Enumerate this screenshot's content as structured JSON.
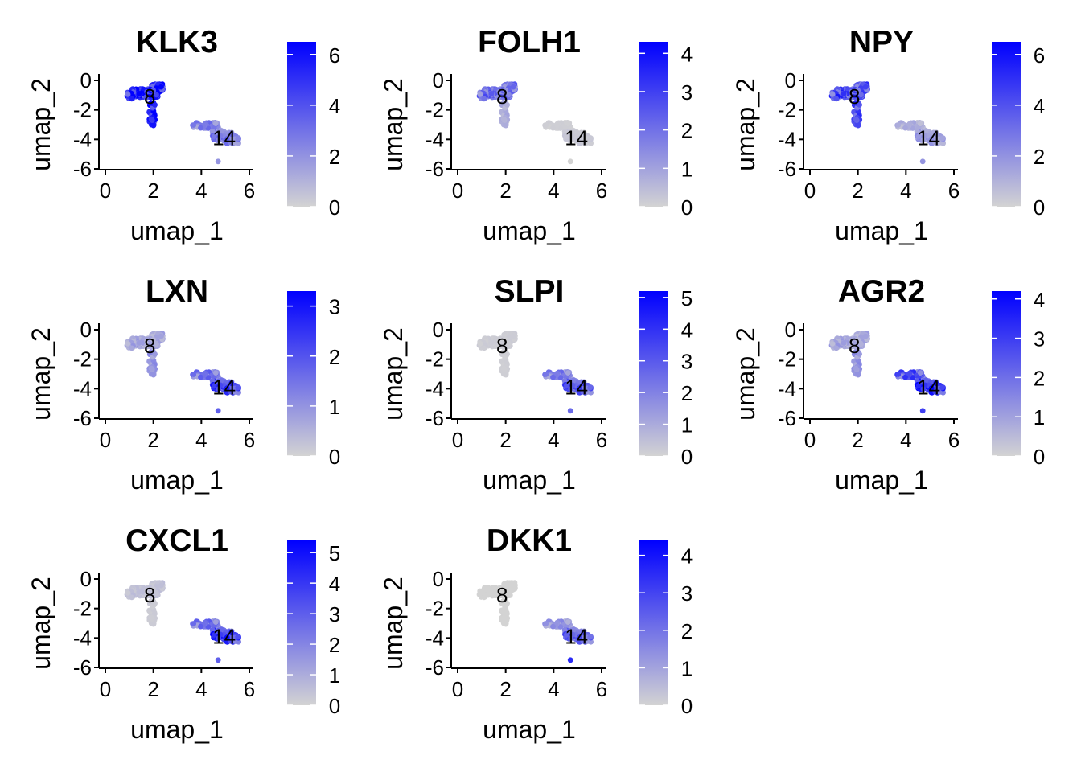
{
  "chart_data": [
    {
      "type": "scatter",
      "title": "KLK3",
      "xlabel": "umap_1",
      "ylabel": "umap_2",
      "xlim": [
        0,
        6
      ],
      "ylim": [
        -6,
        0
      ],
      "x_ticks": [
        0,
        2,
        4,
        6
      ],
      "y_ticks": [
        0,
        -2,
        -4,
        -6
      ],
      "colorbar": {
        "min": 0,
        "max": 6.5,
        "ticks": [
          0,
          2,
          4,
          6
        ]
      },
      "cluster_labels": [
        {
          "text": "8",
          "x": 1.85,
          "y": -1.1
        },
        {
          "text": "14",
          "x": 4.95,
          "y": -3.9
        }
      ],
      "expression": {
        "cluster_8": 0.85,
        "cluster_8_tail": 0.75,
        "cluster_14": 0.35,
        "cluster_14_east": 0.4,
        "outlier": 0.3
      }
    },
    {
      "type": "scatter",
      "title": "FOLH1",
      "xlabel": "umap_1",
      "ylabel": "umap_2",
      "xlim": [
        0,
        6
      ],
      "ylim": [
        -6,
        0
      ],
      "x_ticks": [
        0,
        2,
        4,
        6
      ],
      "y_ticks": [
        0,
        -2,
        -4,
        -6
      ],
      "colorbar": {
        "min": 0,
        "max": 4.3,
        "ticks": [
          0,
          1,
          2,
          3,
          4
        ]
      },
      "cluster_labels": [
        {
          "text": "8",
          "x": 1.85,
          "y": -1.1
        },
        {
          "text": "14",
          "x": 4.95,
          "y": -3.9
        }
      ],
      "expression": {
        "cluster_8": 0.45,
        "cluster_8_tail": 0.15,
        "cluster_14": 0.02,
        "cluster_14_east": 0.05,
        "outlier": 0.0
      }
    },
    {
      "type": "scatter",
      "title": "NPY",
      "xlabel": "umap_1",
      "ylabel": "umap_2",
      "xlim": [
        0,
        6
      ],
      "ylim": [
        -6,
        0
      ],
      "x_ticks": [
        0,
        2,
        4,
        6
      ],
      "y_ticks": [
        0,
        -2,
        -4,
        -6
      ],
      "colorbar": {
        "min": 0,
        "max": 6.5,
        "ticks": [
          0,
          2,
          4,
          6
        ]
      },
      "cluster_labels": [
        {
          "text": "8",
          "x": 1.85,
          "y": -1.1
        },
        {
          "text": "14",
          "x": 4.95,
          "y": -3.9
        }
      ],
      "expression": {
        "cluster_8": 0.6,
        "cluster_8_tail": 0.55,
        "cluster_14": 0.15,
        "cluster_14_east": 0.25,
        "outlier": 0.3
      }
    },
    {
      "type": "scatter",
      "title": "LXN",
      "xlabel": "umap_1",
      "ylabel": "umap_2",
      "xlim": [
        0,
        6
      ],
      "ylim": [
        -6,
        0
      ],
      "x_ticks": [
        0,
        2,
        4,
        6
      ],
      "y_ticks": [
        0,
        -2,
        -4,
        -6
      ],
      "colorbar": {
        "min": 0,
        "max": 3.3,
        "ticks": [
          0,
          1,
          2,
          3
        ]
      },
      "cluster_labels": [
        {
          "text": "8",
          "x": 1.85,
          "y": -1.1
        },
        {
          "text": "14",
          "x": 4.95,
          "y": -3.9
        }
      ],
      "expression": {
        "cluster_8": 0.2,
        "cluster_8_tail": 0.25,
        "cluster_14": 0.4,
        "cluster_14_east": 0.65,
        "outlier": 0.55
      }
    },
    {
      "type": "scatter",
      "title": "SLPI",
      "xlabel": "umap_1",
      "ylabel": "umap_2",
      "xlim": [
        0,
        6
      ],
      "ylim": [
        -6,
        0
      ],
      "x_ticks": [
        0,
        2,
        4,
        6
      ],
      "y_ticks": [
        0,
        -2,
        -4,
        -6
      ],
      "colorbar": {
        "min": 0,
        "max": 5.2,
        "ticks": [
          0,
          1,
          2,
          3,
          4,
          5
        ]
      },
      "cluster_labels": [
        {
          "text": "8",
          "x": 1.85,
          "y": -1.1
        },
        {
          "text": "14",
          "x": 4.95,
          "y": -3.9
        }
      ],
      "expression": {
        "cluster_8": 0.03,
        "cluster_8_tail": 0.02,
        "cluster_14": 0.35,
        "cluster_14_east": 0.55,
        "outlier": 0.5
      }
    },
    {
      "type": "scatter",
      "title": "AGR2",
      "xlabel": "umap_1",
      "ylabel": "umap_2",
      "xlim": [
        0,
        6
      ],
      "ylim": [
        -6,
        0
      ],
      "x_ticks": [
        0,
        2,
        4,
        6
      ],
      "y_ticks": [
        0,
        -2,
        -4,
        -6
      ],
      "colorbar": {
        "min": 0,
        "max": 4.2,
        "ticks": [
          0,
          1,
          2,
          3,
          4
        ]
      },
      "cluster_labels": [
        {
          "text": "8",
          "x": 1.85,
          "y": -1.1
        },
        {
          "text": "14",
          "x": 4.95,
          "y": -3.9
        }
      ],
      "expression": {
        "cluster_8": 0.2,
        "cluster_8_tail": 0.25,
        "cluster_14": 0.55,
        "cluster_14_east": 0.75,
        "outlier": 0.7
      }
    },
    {
      "type": "scatter",
      "title": "CXCL1",
      "xlabel": "umap_1",
      "ylabel": "umap_2",
      "xlim": [
        0,
        6
      ],
      "ylim": [
        -6,
        0
      ],
      "x_ticks": [
        0,
        2,
        4,
        6
      ],
      "y_ticks": [
        0,
        -2,
        -4,
        -6
      ],
      "colorbar": {
        "min": 0,
        "max": 5.4,
        "ticks": [
          0,
          1,
          2,
          3,
          4,
          5
        ]
      },
      "cluster_labels": [
        {
          "text": "8",
          "x": 1.85,
          "y": -1.1
        },
        {
          "text": "14",
          "x": 4.95,
          "y": -3.9
        }
      ],
      "expression": {
        "cluster_8": 0.08,
        "cluster_8_tail": 0.03,
        "cluster_14": 0.4,
        "cluster_14_east": 0.7,
        "outlier": 0.55
      }
    },
    {
      "type": "scatter",
      "title": "DKK1",
      "xlabel": "umap_1",
      "ylabel": "umap_2",
      "xlim": [
        0,
        6
      ],
      "ylim": [
        -6,
        0
      ],
      "x_ticks": [
        0,
        2,
        4,
        6
      ],
      "y_ticks": [
        0,
        -2,
        -4,
        -6
      ],
      "colorbar": {
        "min": 0,
        "max": 4.4,
        "ticks": [
          0,
          1,
          2,
          3,
          4
        ]
      },
      "cluster_labels": [
        {
          "text": "8",
          "x": 1.85,
          "y": -1.1
        },
        {
          "text": "14",
          "x": 4.95,
          "y": -3.9
        }
      ],
      "expression": {
        "cluster_8": 0.0,
        "cluster_8_tail": 0.0,
        "cluster_14": 0.25,
        "cluster_14_east": 0.5,
        "outlier": 0.8
      }
    }
  ],
  "colors": {
    "low": "#d3d3d3",
    "high": "#0000ff"
  }
}
